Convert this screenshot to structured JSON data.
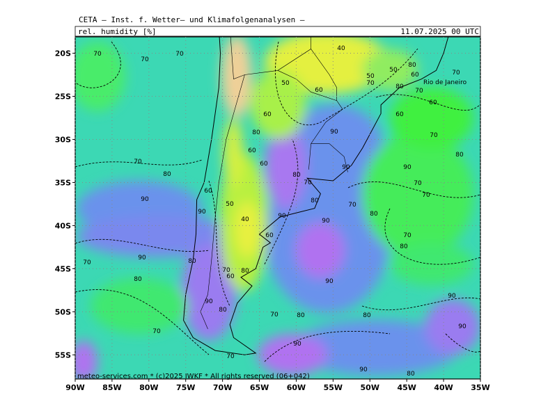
{
  "header": {
    "title": "CETA — Inst. f. Wetter— und Klimafolgenanalysen —",
    "variable": "rel. humidity [%]",
    "valid_time": "11.07.2025 00 UTC"
  },
  "map": {
    "xlim": [
      -90,
      -35
    ],
    "ylim": [
      -57.8,
      -18.1
    ],
    "xticks": [
      {
        "value": -90,
        "label": "90W"
      },
      {
        "value": -85,
        "label": "85W"
      },
      {
        "value": -80,
        "label": "80W"
      },
      {
        "value": -75,
        "label": "75W"
      },
      {
        "value": -70,
        "label": "70W"
      },
      {
        "value": -65,
        "label": "65W"
      },
      {
        "value": -60,
        "label": "60W"
      },
      {
        "value": -55,
        "label": "55W"
      },
      {
        "value": -50,
        "label": "50W"
      },
      {
        "value": -45,
        "label": "45W"
      },
      {
        "value": -40,
        "label": "40W"
      },
      {
        "value": -35,
        "label": "35W"
      }
    ],
    "yticks": [
      {
        "value": -20,
        "label": "20S"
      },
      {
        "value": -25,
        "label": "25S"
      },
      {
        "value": -30,
        "label": "30S"
      },
      {
        "value": -35,
        "label": "35S"
      },
      {
        "value": -40,
        "label": "40S"
      },
      {
        "value": -45,
        "label": "45S"
      },
      {
        "value": -50,
        "label": "50S"
      },
      {
        "value": -55,
        "label": "55S"
      }
    ],
    "grid": true,
    "contour_labels": [
      70,
      70,
      70,
      40,
      50,
      60,
      50,
      50,
      80,
      60,
      80,
      70,
      70,
      70,
      60,
      60,
      60,
      80,
      60,
      60,
      90,
      90,
      90,
      70,
      80,
      70,
      80,
      80,
      70,
      80,
      70,
      70,
      70,
      80,
      90,
      60,
      90,
      50,
      40,
      90,
      90,
      60,
      70,
      80,
      90,
      70,
      80,
      70,
      80,
      60,
      80,
      90,
      90,
      90,
      80,
      70,
      80,
      80,
      90,
      70,
      90,
      70,
      90,
      80
    ],
    "place_label": "Rio de Janeiro",
    "credit": "meteo-services.com * (c)2025 IWKF * All rights reserved (06+042)"
  }
}
